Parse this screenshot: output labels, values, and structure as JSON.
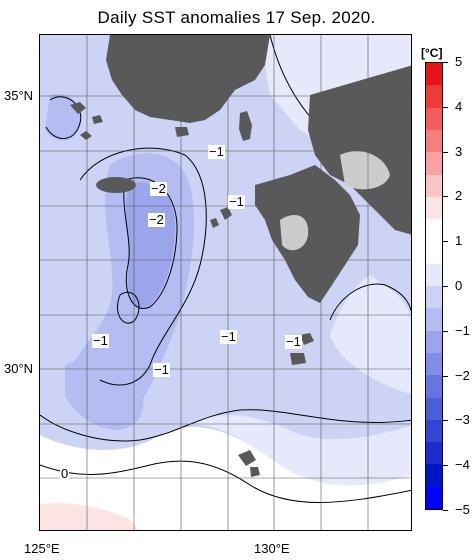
{
  "title": "Daily SST anomalies 17 Sep. 2020.",
  "colorbar": {
    "unit": "[°C]",
    "ticks": [
      "5",
      "4",
      "3",
      "2",
      "1",
      "0",
      "−1",
      "−2",
      "−3",
      "−4",
      "−5"
    ],
    "colors": [
      "#e8141c",
      "#f03a3a",
      "#f55c5c",
      "#f77e7e",
      "#f9a0a0",
      "#fbc6c6",
      "#fce4e4",
      "#ffffff",
      "#ffffff",
      "#e6e8fb",
      "#ccd2f6",
      "#b4bcf1",
      "#9aa5ec",
      "#808ee6",
      "#6676e0",
      "#4c5ed9",
      "#3345d3",
      "#1a2dcc",
      "#0015c6",
      "#0000ff"
    ]
  },
  "axes": {
    "lat_labels": [
      "35°N",
      "30°N"
    ],
    "lon_labels": [
      "125°E",
      "130°E"
    ]
  },
  "contour_labels": [
    "−1",
    "−2",
    "−2",
    "−1",
    "−1",
    "−1",
    "−1",
    "−1",
    "0"
  ],
  "colors": {
    "land": "#595959",
    "land_light": "#cccccc",
    "ocean_base": "#ccd3f5"
  }
}
